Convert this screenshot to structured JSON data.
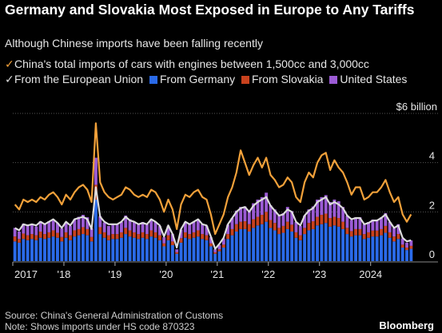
{
  "title": "Germany and Slovakia Most Exposed in Europe to Any Tariffs",
  "subtitle": "Although Chinese imports have been falling recently",
  "legend": [
    {
      "label": "China's total imports of cars with engines between 1,500cc and 3,000cc",
      "color": "#f2a13a",
      "kind": "check"
    },
    {
      "label": "From the European Union",
      "color": "#dcdcdc",
      "kind": "check"
    },
    {
      "label": "From Germany",
      "color": "#2a6ae8",
      "kind": "square"
    },
    {
      "label": "From Slovakia",
      "color": "#c9421e",
      "kind": "square"
    },
    {
      "label": "United States",
      "color": "#9b5bd4",
      "kind": "square"
    }
  ],
  "source": "Source: China's General Administration of Customs",
  "note": "Note: Shows imports under HS code 870323",
  "brand": "Bloomberg",
  "chart_data": {
    "type": "bar",
    "ylabel": "$6 billion",
    "ylim": [
      0,
      6
    ],
    "yticks": [
      0,
      2,
      4
    ],
    "x_labels": [
      "2017",
      "'18",
      "'19",
      "'20",
      "'21",
      "'22",
      "'23",
      "2024"
    ],
    "start": "2017-01",
    "germany": [
      0.8,
      0.75,
      0.9,
      0.85,
      0.9,
      0.85,
      0.95,
      0.9,
      0.95,
      1.0,
      0.95,
      0.8,
      0.95,
      0.85,
      1.0,
      1.05,
      1.1,
      1.05,
      0.8,
      2.5,
      1.1,
      0.95,
      0.85,
      0.9,
      0.9,
      0.95,
      1.1,
      1.0,
      0.95,
      0.9,
      0.95,
      0.9,
      1.0,
      0.95,
      0.85,
      0.6,
      0.85,
      0.65,
      0.3,
      0.75,
      0.95,
      0.9,
      0.95,
      1.0,
      0.9,
      0.85,
      0.6,
      0.3,
      0.4,
      0.55,
      0.9,
      1.05,
      1.2,
      1.3,
      1.3,
      1.2,
      1.35,
      1.45,
      1.5,
      1.6,
      1.35,
      1.25,
      1.1,
      1.15,
      1.3,
      1.2,
      0.95,
      0.85,
      1.1,
      1.25,
      1.3,
      1.45,
      1.5,
      1.55,
      1.4,
      1.45,
      1.4,
      1.3,
      1.1,
      1.0,
      1.05,
      1.05,
      0.9,
      0.95,
      1.0,
      1.0,
      1.05,
      1.15,
      0.95,
      0.8,
      0.9,
      0.55,
      0.45,
      0.5
    ],
    "slovakia": [
      0.2,
      0.15,
      0.22,
      0.2,
      0.2,
      0.2,
      0.25,
      0.2,
      0.22,
      0.25,
      0.2,
      0.18,
      0.22,
      0.2,
      0.25,
      0.25,
      0.28,
      0.25,
      0.18,
      0.6,
      0.28,
      0.22,
      0.2,
      0.2,
      0.2,
      0.22,
      0.25,
      0.25,
      0.22,
      0.2,
      0.22,
      0.2,
      0.25,
      0.22,
      0.2,
      0.12,
      0.2,
      0.15,
      0.06,
      0.18,
      0.22,
      0.2,
      0.22,
      0.25,
      0.2,
      0.2,
      0.12,
      0.06,
      0.08,
      0.12,
      0.2,
      0.25,
      0.3,
      0.3,
      0.32,
      0.3,
      0.35,
      0.35,
      0.38,
      0.4,
      0.32,
      0.3,
      0.25,
      0.28,
      0.3,
      0.28,
      0.22,
      0.2,
      0.25,
      0.3,
      0.32,
      0.35,
      0.38,
      0.38,
      0.35,
      0.35,
      0.35,
      0.3,
      0.25,
      0.22,
      0.25,
      0.25,
      0.2,
      0.22,
      0.24,
      0.24,
      0.25,
      0.28,
      0.22,
      0.2,
      0.2,
      0.12,
      0.1,
      0.12
    ],
    "united_states": [
      0.35,
      0.3,
      0.4,
      0.38,
      0.4,
      0.36,
      0.42,
      0.4,
      0.45,
      0.45,
      0.4,
      0.35,
      0.42,
      0.38,
      0.45,
      0.5,
      0.5,
      0.48,
      0.35,
      1.1,
      0.45,
      0.4,
      0.38,
      0.4,
      0.4,
      0.42,
      0.5,
      0.45,
      0.42,
      0.38,
      0.42,
      0.4,
      0.45,
      0.42,
      0.38,
      0.25,
      0.38,
      0.3,
      0.12,
      0.35,
      0.42,
      0.4,
      0.42,
      0.45,
      0.4,
      0.38,
      0.25,
      0.12,
      0.18,
      0.25,
      0.38,
      0.45,
      0.55,
      0.6,
      0.6,
      0.55,
      0.65,
      0.7,
      0.72,
      0.78,
      0.6,
      0.55,
      0.5,
      0.52,
      0.6,
      0.55,
      0.42,
      0.38,
      0.5,
      0.55,
      0.6,
      0.7,
      0.72,
      0.75,
      0.65,
      0.7,
      0.68,
      0.6,
      0.5,
      0.45,
      0.48,
      0.48,
      0.4,
      0.42,
      0.45,
      0.45,
      0.48,
      0.52,
      0.42,
      0.35,
      0.4,
      0.25,
      0.2,
      0.22
    ],
    "eu": [
      1.35,
      1.25,
      1.5,
      1.45,
      1.5,
      1.45,
      1.6,
      1.5,
      1.6,
      1.7,
      1.55,
      1.35,
      1.6,
      1.45,
      1.7,
      1.75,
      1.8,
      1.7,
      1.3,
      3.0,
      1.8,
      1.6,
      1.5,
      1.5,
      1.5,
      1.6,
      1.8,
      1.65,
      1.6,
      1.5,
      1.55,
      1.5,
      1.7,
      1.6,
      1.45,
      1.0,
      1.45,
      1.1,
      0.55,
      1.3,
      1.6,
      1.5,
      1.6,
      1.7,
      1.5,
      1.45,
      1.0,
      0.5,
      0.7,
      0.95,
      1.5,
      1.75,
      2.0,
      2.15,
      2.2,
      2.0,
      2.25,
      2.4,
      2.5,
      2.6,
      2.25,
      2.05,
      1.85,
      1.9,
      2.1,
      2.0,
      1.6,
      1.45,
      1.85,
      2.05,
      2.15,
      2.4,
      2.5,
      2.6,
      2.3,
      2.4,
      2.3,
      2.15,
      1.85,
      1.7,
      1.75,
      1.75,
      1.5,
      1.55,
      1.65,
      1.65,
      1.75,
      1.9,
      1.6,
      1.35,
      1.45,
      0.95,
      0.8,
      0.85
    ],
    "total": [
      2.3,
      2.1,
      2.5,
      2.4,
      2.5,
      2.4,
      2.6,
      2.5,
      2.7,
      2.8,
      2.6,
      2.3,
      2.7,
      2.5,
      2.8,
      3.0,
      3.1,
      2.9,
      2.4,
      5.6,
      3.2,
      2.8,
      2.6,
      2.5,
      2.6,
      2.7,
      3.0,
      2.9,
      2.7,
      2.6,
      2.7,
      2.6,
      2.9,
      2.8,
      2.5,
      2.0,
      2.5,
      2.1,
      1.3,
      2.3,
      2.7,
      2.6,
      2.8,
      2.9,
      2.6,
      2.5,
      1.9,
      1.1,
      1.5,
      1.9,
      2.6,
      3.0,
      3.6,
      4.5,
      4.0,
      3.5,
      3.9,
      4.2,
      3.8,
      4.2,
      3.5,
      3.3,
      3.0,
      3.1,
      3.4,
      3.2,
      2.6,
      2.4,
      3.2,
      3.6,
      3.4,
      4.0,
      4.3,
      4.4,
      3.7,
      4.1,
      3.8,
      3.6,
      3.2,
      2.7,
      3.0,
      3.0,
      2.5,
      2.6,
      2.8,
      2.8,
      3.0,
      3.3,
      2.8,
      2.4,
      2.6,
      1.9,
      1.6,
      1.9
    ]
  }
}
